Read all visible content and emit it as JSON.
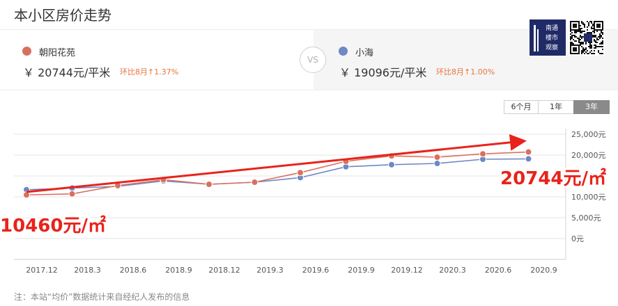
{
  "page_title": "本小区房价走势",
  "left": {
    "name": "朝阳花苑",
    "price": "￥ 20744元/平米",
    "change": "环比8月↑1.37%",
    "color": "#d9705f"
  },
  "vs_label": "VS",
  "right": {
    "name": "小海",
    "price": "￥ 19096元/平米",
    "change": "环比8月↑1.00%",
    "color": "#6e88c4"
  },
  "qr_brand": [
    "南通",
    "楼市",
    "观察"
  ],
  "range_buttons": [
    "6个月",
    "1年",
    "3年"
  ],
  "active_range": "3年",
  "note": "注：本站“均价”数据统计来自经纪人发布的信息",
  "chart_data": {
    "type": "line",
    "x": [
      "2017.12",
      "2018.3",
      "2018.6",
      "2018.9",
      "2018.12",
      "2019.3",
      "2019.6",
      "2019.9",
      "2019.12",
      "2020.3",
      "2020.6",
      "2020.9"
    ],
    "series": [
      {
        "name": "朝阳花苑",
        "values": [
          10460,
          10700,
          12700,
          14100,
          13000,
          13500,
          15800,
          18500,
          19800,
          19500,
          20300,
          20744
        ],
        "color": "#d9705f"
      },
      {
        "name": "小海",
        "values": [
          11700,
          12100,
          12500,
          13800,
          13000,
          13500,
          14600,
          17200,
          17700,
          18000,
          19000,
          19096
        ],
        "color": "#6e88c4"
      }
    ],
    "y_ticks": [
      "25,000元",
      "20,000元",
      "15,000元",
      "10,000元",
      "5,000元",
      "0元"
    ],
    "ylim": [
      0,
      25000
    ],
    "grid": true,
    "annotations": {
      "start_label": "10460元/㎡",
      "end_label": "20744元/㎡",
      "arrow_color": "#e8231b"
    }
  }
}
